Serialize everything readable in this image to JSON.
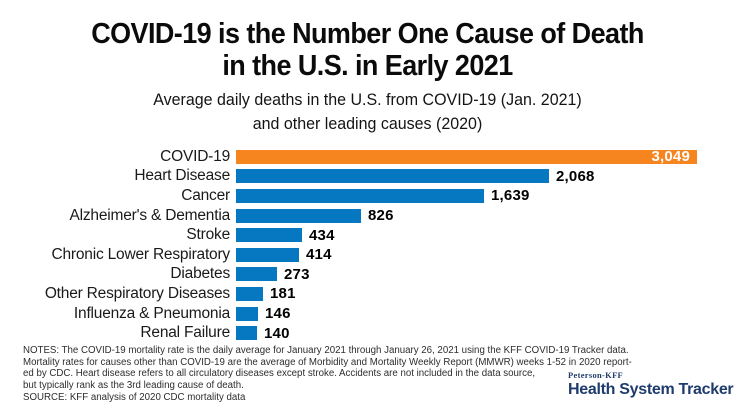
{
  "header": {
    "title_lines": [
      "COVID-19 is the Number One Cause of Death",
      "in the U.S. in Early 2021"
    ],
    "subtitle_lines": [
      "Average daily deaths in the U.S. from COVID-19 (Jan. 2021)",
      "and other leading causes (2020)"
    ]
  },
  "chart_data": {
    "type": "bar",
    "orientation": "horizontal",
    "title": "COVID-19 is the Number One Cause of Death in the U.S. in Early 2021",
    "subtitle": "Average daily deaths in the U.S. from COVID-19 (Jan. 2021) and other leading causes (2020)",
    "categories": [
      "COVID-19",
      "Heart Disease",
      "Cancer",
      "Alzheimer's & Dementia",
      "Stroke",
      "Chronic Lower Respiratory",
      "Diabetes",
      "Other Respiratory Diseases",
      "Influenza & Pneumonia",
      "Renal Failure"
    ],
    "values": [
      3049,
      2068,
      1639,
      826,
      434,
      414,
      273,
      181,
      146,
      140
    ],
    "value_labels": [
      "3,049",
      "2,068",
      "1,639",
      "826",
      "434",
      "414",
      "273",
      "181",
      "146",
      "140"
    ],
    "xlim": [
      0,
      3049
    ],
    "grid": false,
    "legend": false,
    "highlight_index": 0,
    "highlight_color": "#f6851f",
    "bar_color": "#0678c1",
    "highlight_value_label_inside": true
  },
  "notes": {
    "lines": [
      "NOTES: The COVID-19 mortality rate is the daily average for January 2021 through January 26, 2021 using the KFF COVID-19 Tracker data.",
      "Mortality rates for causes other than COVID-19 are the average of Morbidity and Mortality Weekly Report (MMWR) weeks 1-52 in 2020 report-",
      "ed by CDC. Heart disease refers to all circulatory diseases except stroke. Accidents are not included in the data source,",
      "but typically rank as the 3rd leading cause of death.",
      "SOURCE: KFF analysis of 2020 CDC mortality data"
    ]
  },
  "branding": {
    "brand_top": "Peterson-KFF",
    "brand_name": "Health System Tracker",
    "brand_color": "#1f3c6c"
  }
}
